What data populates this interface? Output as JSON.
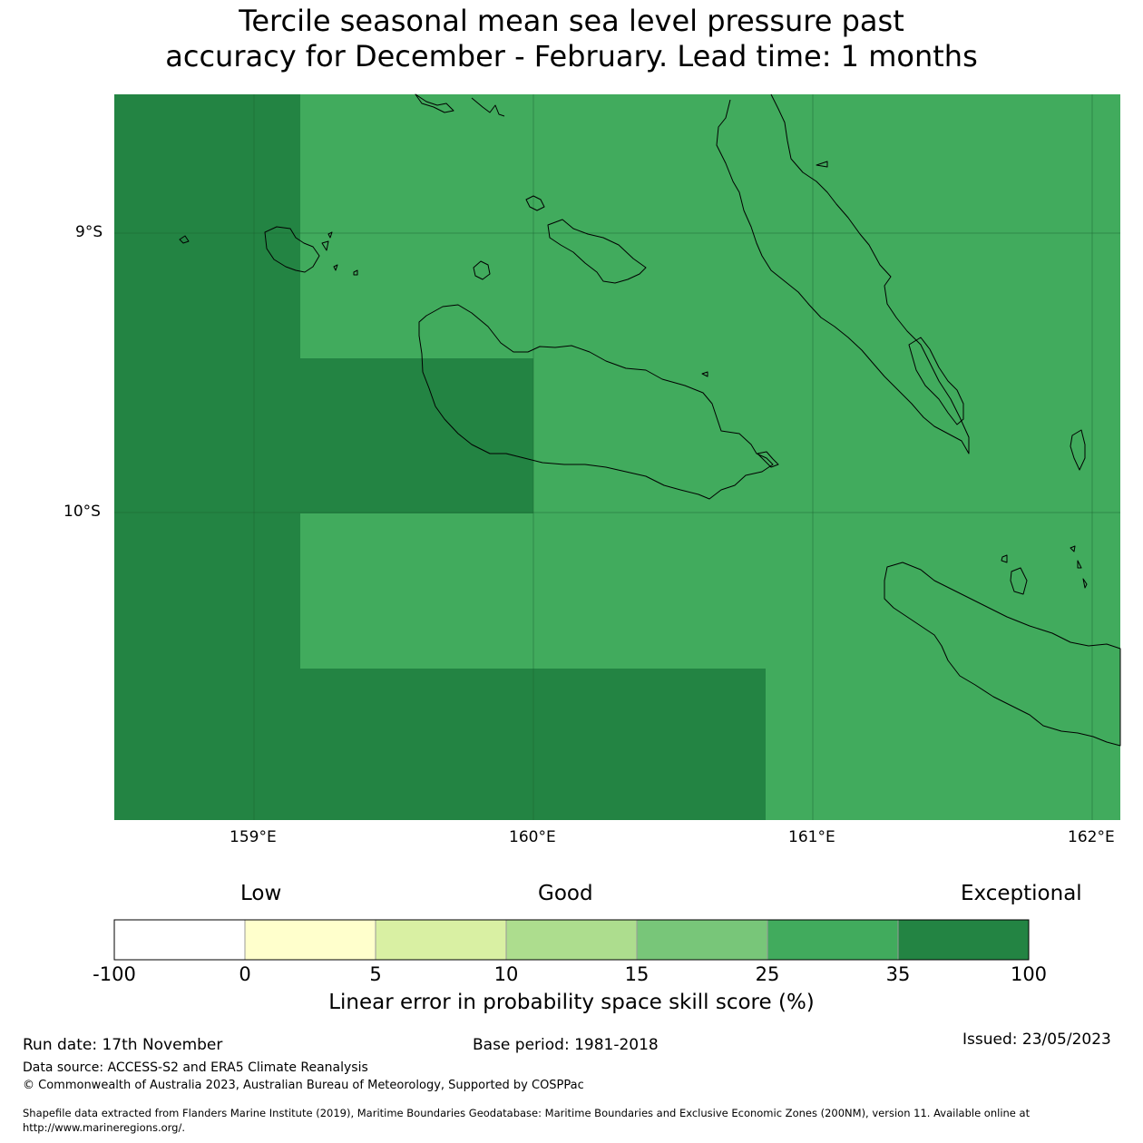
{
  "title": {
    "line1": "Tercile seasonal mean sea level pressure past",
    "line2": "accuracy for December - February. Lead time: 1 months"
  },
  "map": {
    "lat_labels": [
      "9°S",
      "10°S"
    ],
    "lon_labels": [
      "159°E",
      "160°E",
      "161°E",
      "162°E"
    ],
    "colors": {
      "cat_25_35": "#41ab5d",
      "cat_35_100": "#238443",
      "coastline": "#000000",
      "gridline": "#1a5f30"
    }
  },
  "legend": {
    "low": "Low",
    "good": "Good",
    "exceptional": "Exceptional",
    "ticks": [
      "-100",
      "0",
      "5",
      "10",
      "15",
      "25",
      "35",
      "100"
    ],
    "colors": [
      "#ffffff",
      "#ffffcc",
      "#d9f0a3",
      "#addd8e",
      "#78c679",
      "#41ab5d",
      "#238443"
    ],
    "label": "Linear error in probability space skill score (%)"
  },
  "footer": {
    "run_date": "Run date: 17th November",
    "base_period": "Base period: 1981-2018",
    "issued": "Issued: 23/05/2023",
    "data_source": "Data source: ACCESS-S2 and ERA5 Climate Reanalysis",
    "copyright": "© Commonwealth of Australia 2023, Australian Bureau of Meteorology, Supported by COSPPac",
    "shapefile_1": "Shapefile data extracted from Flanders Marine Institute (2019), Maritime Boundaries Geodatabase: Maritime Boundaries and Exclusive Economic Zones (200NM), version 11. Available online at",
    "shapefile_2": "http://www.marineregions.org/."
  }
}
